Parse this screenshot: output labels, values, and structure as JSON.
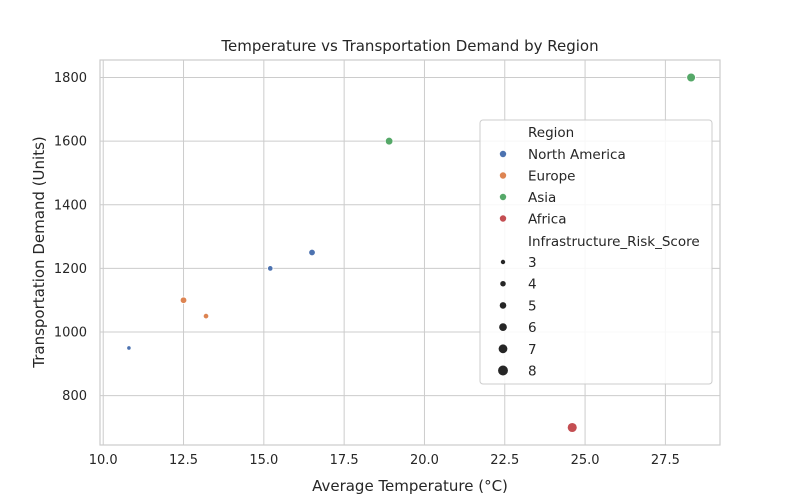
{
  "chart_data": {
    "type": "scatter",
    "title": "Temperature vs Transportation Demand by Region",
    "xlabel": "Average Temperature (°C)",
    "ylabel": "Transportation Demand (Units)",
    "xlim": [
      9.9,
      29.2
    ],
    "ylim": [
      645,
      1855
    ],
    "xticks": [
      10.0,
      12.5,
      15.0,
      17.5,
      20.0,
      22.5,
      25.0,
      27.5
    ],
    "xtick_labels": [
      "10.0",
      "12.5",
      "15.0",
      "17.5",
      "20.0",
      "22.5",
      "25.0",
      "27.5"
    ],
    "yticks": [
      800,
      1000,
      1200,
      1400,
      1600,
      1800
    ],
    "ytick_labels": [
      "800",
      "1000",
      "1200",
      "1400",
      "1600",
      "1800"
    ],
    "grid": true,
    "legend_placement": "center-right",
    "hue_title": "Region",
    "size_title": "Infrastructure_Risk_Score",
    "series": [
      {
        "name": "North America",
        "color": "#4c72b0",
        "points": [
          {
            "x": 10.8,
            "y": 950,
            "risk": 3
          },
          {
            "x": 15.2,
            "y": 1200,
            "risk": 4
          },
          {
            "x": 16.5,
            "y": 1250,
            "risk": 5
          }
        ]
      },
      {
        "name": "Europe",
        "color": "#dd8452",
        "points": [
          {
            "x": 12.5,
            "y": 1100,
            "risk": 5
          },
          {
            "x": 13.2,
            "y": 1050,
            "risk": 4
          }
        ]
      },
      {
        "name": "Asia",
        "color": "#55a868",
        "points": [
          {
            "x": 18.9,
            "y": 1600,
            "risk": 6
          },
          {
            "x": 28.3,
            "y": 1800,
            "risk": 7
          }
        ]
      },
      {
        "name": "Africa",
        "color": "#c44e52",
        "points": [
          {
            "x": 24.6,
            "y": 700,
            "risk": 8
          }
        ]
      }
    ],
    "size_legend": [
      {
        "label": "3",
        "value": 3
      },
      {
        "label": "4",
        "value": 4
      },
      {
        "label": "5",
        "value": 5
      },
      {
        "label": "6",
        "value": 6
      },
      {
        "label": "7",
        "value": 7
      },
      {
        "label": "8",
        "value": 8
      }
    ]
  }
}
